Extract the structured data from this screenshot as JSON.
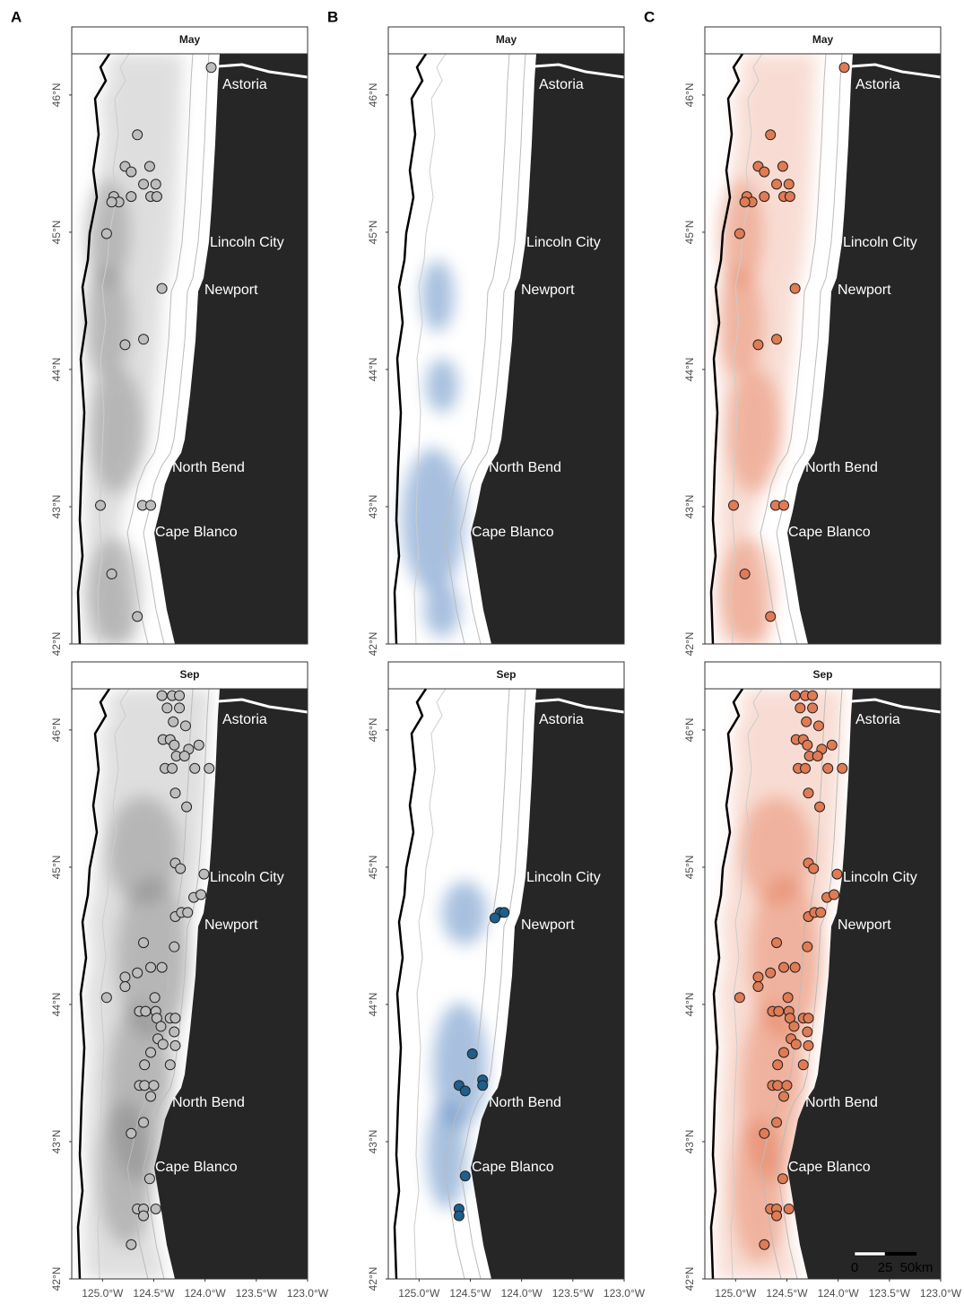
{
  "panels": [
    {
      "label": "A",
      "point_color": "#bdbdbd",
      "heat_color": "#6e6e6e",
      "points": [
        [
          [
            -123.94,
            46.2
          ],
          [
            -124.66,
            45.71
          ],
          [
            -124.78,
            45.48
          ],
          [
            -124.72,
            45.44
          ],
          [
            -124.54,
            45.48
          ],
          [
            -124.6,
            45.35
          ],
          [
            -124.48,
            45.35
          ],
          [
            -124.89,
            45.26
          ],
          [
            -124.84,
            45.22
          ],
          [
            -124.91,
            45.22
          ],
          [
            -124.72,
            45.26
          ],
          [
            -124.53,
            45.26
          ],
          [
            -124.47,
            45.26
          ],
          [
            -124.96,
            44.99
          ],
          [
            -124.42,
            44.59
          ],
          [
            -124.6,
            44.22
          ],
          [
            -124.78,
            44.18
          ],
          [
            -125.02,
            43.01
          ],
          [
            -124.61,
            43.01
          ],
          [
            -124.53,
            43.01
          ],
          [
            -124.91,
            42.51
          ],
          [
            -124.66,
            42.2
          ]
        ],
        [
          [
            -124.42,
            46.25
          ],
          [
            -124.32,
            46.25
          ],
          [
            -124.25,
            46.25
          ],
          [
            -124.37,
            46.16
          ],
          [
            -124.25,
            46.16
          ],
          [
            -124.31,
            46.06
          ],
          [
            -124.19,
            46.03
          ],
          [
            -124.41,
            45.93
          ],
          [
            -124.34,
            45.93
          ],
          [
            -124.16,
            45.86
          ],
          [
            -124.06,
            45.89
          ],
          [
            -124.3,
            45.89
          ],
          [
            -124.28,
            45.81
          ],
          [
            -124.39,
            45.72
          ],
          [
            -124.32,
            45.72
          ],
          [
            -124.1,
            45.72
          ],
          [
            -123.96,
            45.72
          ],
          [
            -124.2,
            45.81
          ],
          [
            -124.29,
            45.54
          ],
          [
            -124.18,
            45.44
          ],
          [
            -124.29,
            45.03
          ],
          [
            -124.24,
            44.99
          ],
          [
            -124.01,
            44.95
          ],
          [
            -124.11,
            44.78
          ],
          [
            -124.04,
            44.8
          ],
          [
            -124.29,
            44.64
          ],
          [
            -124.23,
            44.67
          ],
          [
            -124.17,
            44.67
          ],
          [
            -124.6,
            44.45
          ],
          [
            -124.3,
            44.42
          ],
          [
            -124.53,
            44.27
          ],
          [
            -124.42,
            44.27
          ],
          [
            -124.78,
            44.2
          ],
          [
            -124.78,
            44.13
          ],
          [
            -124.66,
            44.23
          ],
          [
            -124.96,
            44.05
          ],
          [
            -124.49,
            44.05
          ],
          [
            -124.64,
            43.95
          ],
          [
            -124.58,
            43.95
          ],
          [
            -124.48,
            43.95
          ],
          [
            -124.47,
            43.9
          ],
          [
            -124.43,
            43.84
          ],
          [
            -124.34,
            43.9
          ],
          [
            -124.29,
            43.9
          ],
          [
            -124.3,
            43.8
          ],
          [
            -124.46,
            43.75
          ],
          [
            -124.41,
            43.71
          ],
          [
            -124.29,
            43.7
          ],
          [
            -124.53,
            43.65
          ],
          [
            -124.59,
            43.56
          ],
          [
            -124.34,
            43.56
          ],
          [
            -124.64,
            43.41
          ],
          [
            -124.59,
            43.41
          ],
          [
            -124.5,
            43.41
          ],
          [
            -124.53,
            43.33
          ],
          [
            -124.6,
            43.14
          ],
          [
            -124.72,
            43.06
          ],
          [
            -124.54,
            42.73
          ],
          [
            -124.66,
            42.51
          ],
          [
            -124.6,
            42.51
          ],
          [
            -124.48,
            42.51
          ],
          [
            -124.6,
            42.46
          ],
          [
            -124.72,
            42.25
          ]
        ]
      ]
    },
    {
      "label": "B",
      "point_color": "#1f5f8b",
      "heat_color": "#3f74b8",
      "points": [
        [],
        [
          [
            -124.21,
            44.67
          ],
          [
            -124.26,
            44.63
          ],
          [
            -124.17,
            44.67
          ],
          [
            -124.48,
            43.64
          ],
          [
            -124.61,
            43.41
          ],
          [
            -124.55,
            43.37
          ],
          [
            -124.38,
            43.45
          ],
          [
            -124.38,
            43.41
          ],
          [
            -124.55,
            42.75
          ],
          [
            -124.61,
            42.51
          ],
          [
            -124.61,
            42.46
          ]
        ]
      ]
    },
    {
      "label": "C",
      "point_color": "#e07b54",
      "heat_color": "#e0663c",
      "points": [
        [
          [
            -123.94,
            46.2
          ],
          [
            -124.66,
            45.71
          ],
          [
            -124.78,
            45.48
          ],
          [
            -124.72,
            45.44
          ],
          [
            -124.54,
            45.48
          ],
          [
            -124.6,
            45.35
          ],
          [
            -124.48,
            45.35
          ],
          [
            -124.89,
            45.26
          ],
          [
            -124.84,
            45.22
          ],
          [
            -124.91,
            45.22
          ],
          [
            -124.72,
            45.26
          ],
          [
            -124.53,
            45.26
          ],
          [
            -124.47,
            45.26
          ],
          [
            -124.96,
            44.99
          ],
          [
            -124.42,
            44.59
          ],
          [
            -124.6,
            44.22
          ],
          [
            -124.78,
            44.18
          ],
          [
            -125.02,
            43.01
          ],
          [
            -124.61,
            43.01
          ],
          [
            -124.53,
            43.01
          ],
          [
            -124.91,
            42.51
          ],
          [
            -124.66,
            42.2
          ]
        ],
        [
          [
            -124.42,
            46.25
          ],
          [
            -124.32,
            46.25
          ],
          [
            -124.25,
            46.25
          ],
          [
            -124.37,
            46.16
          ],
          [
            -124.25,
            46.16
          ],
          [
            -124.31,
            46.06
          ],
          [
            -124.19,
            46.03
          ],
          [
            -124.41,
            45.93
          ],
          [
            -124.34,
            45.93
          ],
          [
            -124.16,
            45.86
          ],
          [
            -124.06,
            45.89
          ],
          [
            -124.3,
            45.89
          ],
          [
            -124.28,
            45.81
          ],
          [
            -124.39,
            45.72
          ],
          [
            -124.32,
            45.72
          ],
          [
            -124.1,
            45.72
          ],
          [
            -123.96,
            45.72
          ],
          [
            -124.2,
            45.81
          ],
          [
            -124.29,
            45.54
          ],
          [
            -124.18,
            45.44
          ],
          [
            -124.29,
            45.03
          ],
          [
            -124.24,
            44.99
          ],
          [
            -124.01,
            44.95
          ],
          [
            -124.11,
            44.78
          ],
          [
            -124.04,
            44.8
          ],
          [
            -124.29,
            44.64
          ],
          [
            -124.23,
            44.67
          ],
          [
            -124.17,
            44.67
          ],
          [
            -124.6,
            44.45
          ],
          [
            -124.3,
            44.42
          ],
          [
            -124.53,
            44.27
          ],
          [
            -124.42,
            44.27
          ],
          [
            -124.78,
            44.2
          ],
          [
            -124.78,
            44.13
          ],
          [
            -124.66,
            44.23
          ],
          [
            -124.96,
            44.05
          ],
          [
            -124.49,
            44.05
          ],
          [
            -124.64,
            43.95
          ],
          [
            -124.58,
            43.95
          ],
          [
            -124.48,
            43.95
          ],
          [
            -124.47,
            43.9
          ],
          [
            -124.43,
            43.84
          ],
          [
            -124.34,
            43.9
          ],
          [
            -124.29,
            43.9
          ],
          [
            -124.3,
            43.8
          ],
          [
            -124.46,
            43.75
          ],
          [
            -124.41,
            43.71
          ],
          [
            -124.29,
            43.7
          ],
          [
            -124.53,
            43.65
          ],
          [
            -124.59,
            43.56
          ],
          [
            -124.34,
            43.56
          ],
          [
            -124.64,
            43.41
          ],
          [
            -124.59,
            43.41
          ],
          [
            -124.5,
            43.41
          ],
          [
            -124.53,
            43.33
          ],
          [
            -124.6,
            43.14
          ],
          [
            -124.72,
            43.06
          ],
          [
            -124.54,
            42.73
          ],
          [
            -124.66,
            42.51
          ],
          [
            -124.6,
            42.51
          ],
          [
            -124.48,
            42.51
          ],
          [
            -124.6,
            42.46
          ],
          [
            -124.72,
            42.25
          ]
        ]
      ]
    }
  ],
  "facets": [
    "May",
    "Sep"
  ],
  "cities": [
    "Astoria",
    "Lincoln City",
    "Newport",
    "North Bend",
    "Cape Blanco"
  ],
  "map": {
    "xlim": [
      -125.3,
      -123.0
    ],
    "ylim": [
      42,
      46.3
    ],
    "xticks": [
      {
        "value": -125.0,
        "label": "125.0°W"
      },
      {
        "value": -124.5,
        "label": "124.5°W"
      },
      {
        "value": -124.0,
        "label": "124.0°W"
      },
      {
        "value": -123.5,
        "label": "123.5°W"
      },
      {
        "value": -123.0,
        "label": "123.0°W"
      }
    ],
    "yticks": [
      {
        "value": 42,
        "label": "42°N"
      },
      {
        "value": 43,
        "label": "43°N"
      },
      {
        "value": 44,
        "label": "44°N"
      },
      {
        "value": 45,
        "label": "45°N"
      },
      {
        "value": 46,
        "label": "46°N"
      }
    ]
  },
  "scale_bar": [
    "0",
    "25",
    "50km"
  ]
}
